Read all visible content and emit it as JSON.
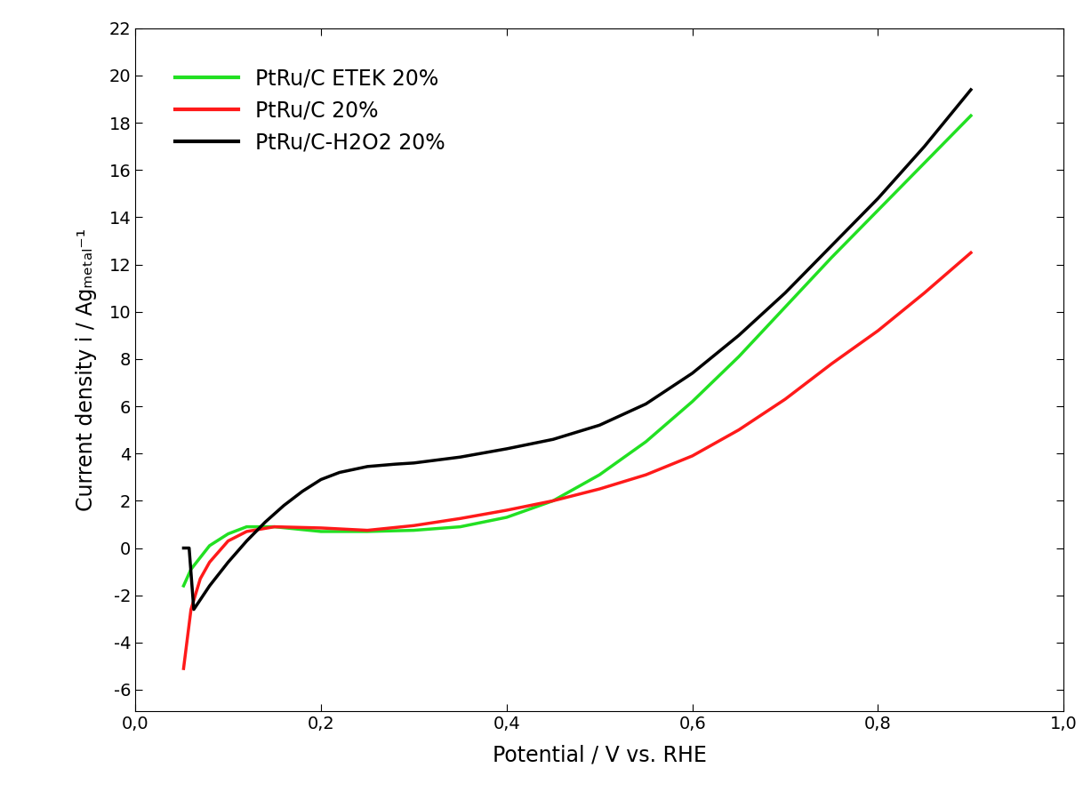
{
  "chart_data": {
    "type": "line",
    "x_label": "Potential / V vs. RHE",
    "y_label": "Current density i / Agₘₑₜₐₗ⁻¹",
    "xlim": [
      0.0,
      1.0
    ],
    "ylim": [
      -6.9,
      22
    ],
    "xticks": [
      {
        "value": 0.0,
        "label": "0,0"
      },
      {
        "value": 0.2,
        "label": "0,2"
      },
      {
        "value": 0.4,
        "label": "0,4"
      },
      {
        "value": 0.6,
        "label": "0,6"
      },
      {
        "value": 0.8,
        "label": "0,8"
      },
      {
        "value": 1.0,
        "label": "1,0"
      }
    ],
    "yticks": [
      -6,
      -4,
      -2,
      0,
      2,
      4,
      6,
      8,
      10,
      12,
      14,
      16,
      18,
      20,
      22
    ],
    "legend": "upper left",
    "grid": false,
    "series": [
      {
        "name": "PtRu/C ETEK 20%",
        "color": "#22e022",
        "x": [
          0.052,
          0.06,
          0.08,
          0.1,
          0.12,
          0.15,
          0.2,
          0.25,
          0.3,
          0.35,
          0.4,
          0.45,
          0.5,
          0.55,
          0.6,
          0.65,
          0.7,
          0.75,
          0.8,
          0.85,
          0.9
        ],
        "values": [
          -1.6,
          -0.9,
          0.1,
          0.6,
          0.9,
          0.9,
          0.7,
          0.7,
          0.75,
          0.9,
          1.3,
          2.0,
          3.1,
          4.5,
          6.2,
          8.1,
          10.2,
          12.3,
          14.3,
          16.3,
          18.3
        ]
      },
      {
        "name": "PtRu/C 20%",
        "color": "#ff1a1a",
        "x": [
          0.052,
          0.06,
          0.07,
          0.08,
          0.1,
          0.12,
          0.15,
          0.2,
          0.25,
          0.3,
          0.35,
          0.4,
          0.45,
          0.5,
          0.55,
          0.6,
          0.65,
          0.7,
          0.75,
          0.8,
          0.85,
          0.9
        ],
        "values": [
          -5.1,
          -2.6,
          -1.3,
          -0.6,
          0.3,
          0.7,
          0.9,
          0.85,
          0.75,
          0.95,
          1.25,
          1.6,
          2.0,
          2.5,
          3.1,
          3.9,
          5.0,
          6.3,
          7.8,
          9.2,
          10.8,
          12.5
        ]
      },
      {
        "name": "PtRu/C-H2O2 20%",
        "color": "#000000",
        "x": [
          0.052,
          0.058,
          0.063,
          0.08,
          0.1,
          0.12,
          0.14,
          0.16,
          0.18,
          0.2,
          0.22,
          0.25,
          0.28,
          0.3,
          0.35,
          0.4,
          0.45,
          0.5,
          0.55,
          0.6,
          0.65,
          0.7,
          0.75,
          0.8,
          0.85,
          0.9
        ],
        "values": [
          0.0,
          0.0,
          -2.6,
          -1.6,
          -0.6,
          0.3,
          1.1,
          1.8,
          2.4,
          2.9,
          3.2,
          3.45,
          3.55,
          3.6,
          3.85,
          4.2,
          4.6,
          5.2,
          6.1,
          7.4,
          9.0,
          10.8,
          12.8,
          14.8,
          17.0,
          19.4
        ]
      }
    ]
  }
}
